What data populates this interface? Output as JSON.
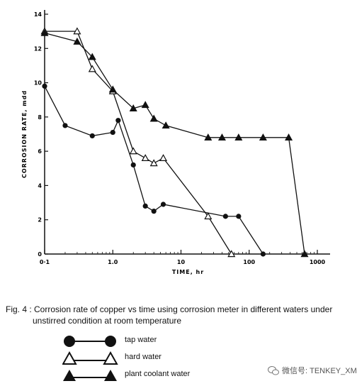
{
  "chart_data": {
    "type": "line",
    "xscale": "log",
    "xlim": [
      0.1,
      1000
    ],
    "ylim": [
      0,
      14
    ],
    "xlabel": "TIME, hr",
    "ylabel": "CORROSION RATE, mdd",
    "xticks": [
      {
        "value": 0.1,
        "label": "0·1"
      },
      {
        "value": 1,
        "label": "1.0"
      },
      {
        "value": 10,
        "label": "10"
      },
      {
        "value": 100,
        "label": "100"
      },
      {
        "value": 1000,
        "label": "1000"
      }
    ],
    "yticks": [
      0,
      2,
      4,
      6,
      8,
      10,
      12,
      14
    ],
    "series": [
      {
        "name": "tap water",
        "marker": "filled-circle",
        "x": [
          0.1,
          0.2,
          0.5,
          1.0,
          1.2,
          2.0,
          3.0,
          4.0,
          5.5,
          45,
          70
        ],
        "y": [
          9.8,
          7.5,
          6.9,
          7.1,
          7.8,
          5.2,
          2.8,
          2.5,
          2.9,
          2.2,
          2.2
        ]
      },
      {
        "name": "hard water",
        "marker": "open-triangle",
        "x": [
          0.1,
          0.3,
          0.5,
          1.0,
          2.0,
          3.0,
          4.0,
          5.5,
          25,
          55
        ],
        "y": [
          13.0,
          13.0,
          10.8,
          9.5,
          6.0,
          5.6,
          5.3,
          5.6,
          2.2,
          0
        ]
      },
      {
        "name": "plant coolant water",
        "marker": "filled-triangle",
        "x": [
          0.1,
          0.3,
          0.5,
          1.0,
          2.0,
          3.0,
          4.0,
          6.0,
          25,
          40,
          70,
          160,
          380,
          650
        ],
        "y": [
          12.9,
          12.4,
          11.5,
          9.6,
          8.5,
          8.7,
          7.9,
          7.5,
          6.8,
          6.8,
          6.8,
          6.8,
          6.8,
          0
        ]
      }
    ],
    "_extra_tap_point": {
      "x": 160,
      "y": 0
    }
  },
  "caption": {
    "line1": "Fig. 4 : Corrosion rate of copper vs time using corrosion meter in different waters under",
    "line2": "unstirred condition at room temperature"
  },
  "legend": [
    {
      "label": "tap water",
      "marker": "filled-circle"
    },
    {
      "label": "hard water",
      "marker": "open-triangle"
    },
    {
      "label": "plant coolant water",
      "marker": "filled-triangle"
    }
  ],
  "watermark": {
    "text": "微信号: TENKEY_XM",
    "icon": "wechat-icon"
  }
}
